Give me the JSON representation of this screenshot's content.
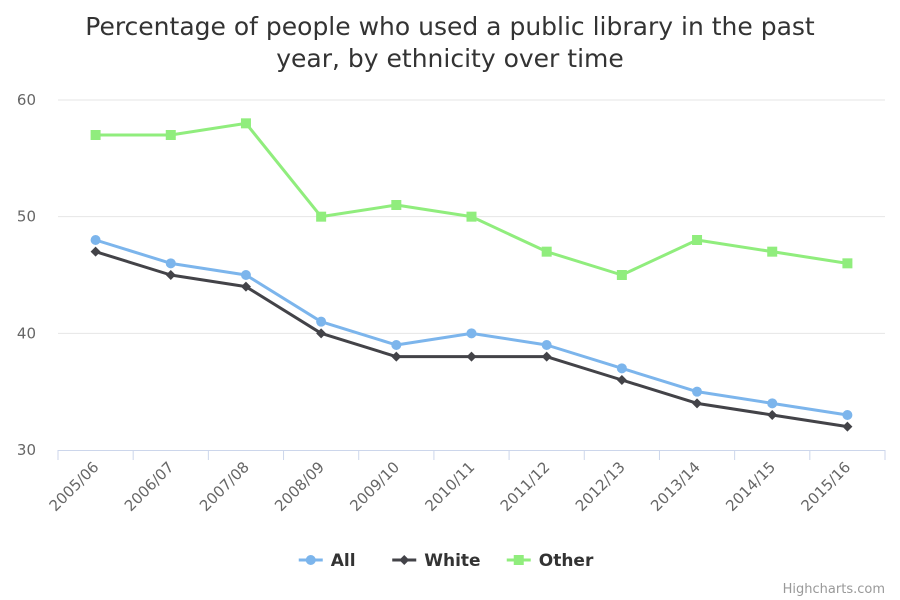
{
  "chart_data": {
    "type": "line",
    "title_line1": "Percentage of people who used a public library in the past",
    "title_line2": "year, by ethnicity over time",
    "categories": [
      "2005/06",
      "2006/07",
      "2007/08",
      "2008/09",
      "2009/10",
      "2010/11",
      "2011/12",
      "2012/13",
      "2013/14",
      "2014/15",
      "2015/16"
    ],
    "yticks": [
      30,
      40,
      50,
      60
    ],
    "ylim": [
      30,
      60
    ],
    "grid": true,
    "legend_position": "bottom-center",
    "series": [
      {
        "name": "All",
        "color": "#7cb5ec",
        "marker": "circle",
        "values": [
          48,
          46,
          45,
          41,
          39,
          40,
          39,
          37,
          35,
          34,
          33
        ]
      },
      {
        "name": "White",
        "color": "#434348",
        "marker": "diamond",
        "values": [
          47,
          45,
          44,
          40,
          38,
          38,
          38,
          36,
          34,
          33,
          32
        ]
      },
      {
        "name": "Other",
        "color": "#90ed7d",
        "marker": "square",
        "values": [
          57,
          57,
          58,
          50,
          51,
          50,
          47,
          45,
          48,
          47,
          46
        ]
      }
    ]
  },
  "credits": "Highcharts.com"
}
